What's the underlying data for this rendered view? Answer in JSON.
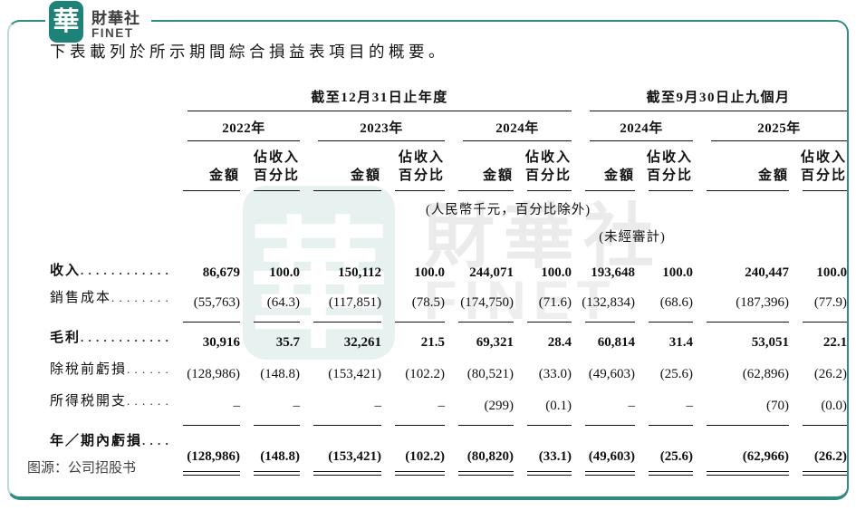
{
  "logo": {
    "badge_glyph": "華",
    "brand_cn": "財華社",
    "brand_en": "FINET"
  },
  "watermark": {
    "badge_glyph": "華",
    "text_cn": "財華社",
    "text_en": "FINET"
  },
  "title": "下表載列於所示期間綜合損益表項目的概要。",
  "colors": {
    "frame_teal": "#2e8c80",
    "badge_teal": "#1f8278"
  },
  "table": {
    "group_headers": [
      {
        "label": "截至12月31日止年度"
      },
      {
        "label": "截至9月30日止九個月"
      }
    ],
    "year_headers": [
      "2022年",
      "2023年",
      "2024年",
      "2024年",
      "2025年"
    ],
    "sub_headers": {
      "amount": "金額",
      "pct_line1": "佔收入",
      "pct_line2": "百分比"
    },
    "notes": {
      "units": "(人民幣千元，百分比除外)",
      "unaudited": "(未經審計)"
    },
    "rows": [
      {
        "label": "收入",
        "bold": true,
        "values": [
          "86,679",
          "100.0",
          "150,112",
          "100.0",
          "244,071",
          "100.0",
          "193,648",
          "100.0",
          "240,447",
          "100.0"
        ]
      },
      {
        "label": "銷售成本",
        "bold": false,
        "rule_after": "single",
        "values": [
          "(55,763)",
          "(64.3)",
          "(117,851)",
          "(78.5)",
          "(174,750)",
          "(71.6)",
          "(132,834)",
          "(68.6)",
          "(187,396)",
          "(77.9)"
        ]
      },
      {
        "label": "毛利",
        "bold": true,
        "values": [
          "30,916",
          "35.7",
          "32,261",
          "21.5",
          "69,321",
          "28.4",
          "60,814",
          "31.4",
          "53,051",
          "22.1"
        ]
      },
      {
        "label": "除稅前虧損",
        "bold": false,
        "values": [
          "(128,986)",
          "(148.8)",
          "(153,421)",
          "(102.2)",
          "(80,521)",
          "(33.0)",
          "(49,603)",
          "(25.6)",
          "(62,896)",
          "(26.2)"
        ]
      },
      {
        "label": "所得税開支",
        "bold": false,
        "rule_after": "single",
        "values": [
          "–",
          "–",
          "–",
          "–",
          "(299)",
          "(0.1)",
          "–",
          "–",
          "(70)",
          "(0.0)"
        ]
      },
      {
        "label": "年／期內虧損",
        "bold": true,
        "rule_after": "double",
        "values": [
          "(128,986)",
          "(148.8)",
          "(153,421)",
          "(102.2)",
          "(80,820)",
          "(33.1)",
          "(49,603)",
          "(25.6)",
          "(62,966)",
          "(26.2)"
        ]
      }
    ]
  },
  "footer": {
    "source": "图源：公司招股书"
  }
}
